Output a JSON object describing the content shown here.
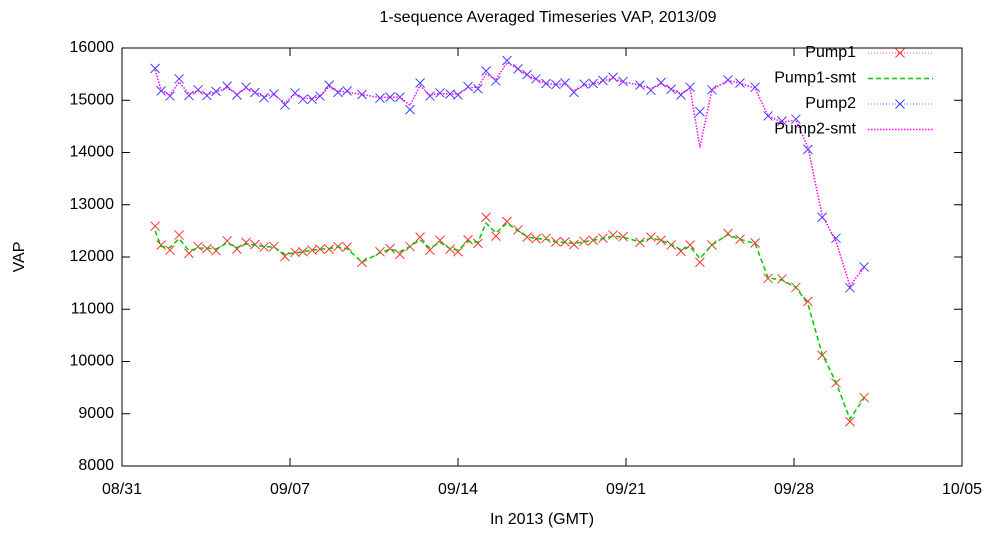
{
  "chart_data": {
    "type": "line",
    "title": "1-sequence Averaged Timeseries VAP, 2013/09",
    "x_label": "In 2013 (GMT)",
    "y_label": "VAP",
    "xlim": [
      0,
      35
    ],
    "xticks": [
      {
        "value": 0,
        "label": "08/31"
      },
      {
        "value": 7,
        "label": "09/07"
      },
      {
        "value": 14,
        "label": "09/14"
      },
      {
        "value": 21,
        "label": "09/21"
      },
      {
        "value": 28,
        "label": "09/28"
      },
      {
        "value": 35,
        "label": "10/05"
      }
    ],
    "ylim": [
      8000,
      16000
    ],
    "yticks": [
      8000,
      9000,
      10000,
      11000,
      12000,
      13000,
      14000,
      15000,
      16000
    ],
    "legend": "top-right",
    "x": [
      1.38,
      1.63,
      2.0,
      2.38,
      2.79,
      3.17,
      3.54,
      3.92,
      4.38,
      4.79,
      5.17,
      5.54,
      5.92,
      6.33,
      6.79,
      7.21,
      7.54,
      7.92,
      8.25,
      8.63,
      9.0,
      9.38,
      10.0,
      10.75,
      11.17,
      11.58,
      12.0,
      12.42,
      12.83,
      13.25,
      13.67,
      14.0,
      14.42,
      14.83,
      15.17,
      15.58,
      16.04,
      16.5,
      16.88,
      17.25,
      17.67,
      18.08,
      18.46,
      18.83,
      19.25,
      19.63,
      20.04,
      20.46,
      20.88,
      21.58,
      22.04,
      22.46,
      22.88,
      23.29,
      23.67,
      24.08,
      24.58,
      25.25,
      25.75,
      26.38,
      26.92,
      27.5,
      28.08,
      28.58,
      29.17,
      29.75,
      30.33,
      30.92
    ],
    "series": [
      {
        "name": "Pump1",
        "color": "#ff3030",
        "mode": "points",
        "values": [
          12590,
          12230,
          12130,
          12420,
          12070,
          12200,
          12160,
          12120,
          12310,
          12150,
          12280,
          12240,
          12190,
          12200,
          12010,
          12090,
          12100,
          12130,
          12150,
          12150,
          12200,
          12190,
          11900,
          12100,
          12160,
          12050,
          12200,
          12380,
          12130,
          12320,
          12150,
          12100,
          12330,
          12260,
          12760,
          12400,
          12680,
          12520,
          12380,
          12350,
          12360,
          12290,
          12290,
          12240,
          12300,
          12320,
          12360,
          12420,
          12390,
          12280,
          12380,
          12320,
          12230,
          12110,
          12230,
          11900,
          12230,
          12450,
          12340,
          12270,
          11590,
          11580,
          11420,
          11150,
          10120,
          9590,
          8850,
          9310
        ]
      },
      {
        "name": "Pump1-smt",
        "color": "#00c800",
        "mode": "dashed",
        "values": [
          12500,
          12200,
          12180,
          12350,
          12120,
          12170,
          12170,
          12150,
          12270,
          12180,
          12250,
          12230,
          12200,
          12190,
          12050,
          12080,
          12100,
          12130,
          12150,
          12160,
          12190,
          12160,
          11900,
          12080,
          12150,
          12100,
          12200,
          12330,
          12170,
          12280,
          12160,
          12130,
          12300,
          12280,
          12650,
          12460,
          12650,
          12500,
          12390,
          12350,
          12340,
          12290,
          12280,
          12260,
          12290,
          12320,
          12350,
          12400,
          12380,
          12290,
          12360,
          12320,
          12240,
          12140,
          12200,
          11970,
          12230,
          12430,
          12340,
          12260,
          11600,
          11560,
          11420,
          11100,
          10150,
          9600,
          8900,
          9300
        ]
      },
      {
        "name": "Pump2",
        "color": "#4040ff",
        "mode": "points",
        "values": [
          15610,
          15180,
          15080,
          15410,
          15090,
          15200,
          15090,
          15170,
          15270,
          15100,
          15250,
          15150,
          15050,
          15120,
          14910,
          15140,
          15020,
          15020,
          15080,
          15290,
          15150,
          15180,
          15110,
          15040,
          15060,
          15060,
          14820,
          15330,
          15080,
          15140,
          15120,
          15100,
          15260,
          15220,
          15560,
          15370,
          15760,
          15600,
          15490,
          15410,
          15320,
          15300,
          15330,
          15150,
          15310,
          15320,
          15380,
          15440,
          15360,
          15290,
          15190,
          15340,
          15210,
          15100,
          15250,
          14780,
          15200,
          15390,
          15330,
          15250,
          14700,
          14600,
          14640,
          14060,
          12760,
          12360,
          11410,
          11810
        ]
      },
      {
        "name": "Pump2-smt",
        "color": "#ff00ff",
        "mode": "dotted",
        "values": [
          15580,
          15200,
          15100,
          15350,
          15120,
          15180,
          15110,
          15160,
          15240,
          15120,
          15230,
          15160,
          15070,
          15110,
          14950,
          15120,
          15040,
          15030,
          15080,
          15260,
          15170,
          15160,
          15110,
          15050,
          15060,
          15060,
          14900,
          15280,
          15100,
          15130,
          15120,
          15120,
          15240,
          15250,
          15500,
          15400,
          15720,
          15600,
          15480,
          15400,
          15320,
          15300,
          15310,
          15180,
          15290,
          15310,
          15370,
          15420,
          15350,
          15290,
          15220,
          15320,
          15220,
          15120,
          15230,
          14100,
          15200,
          15380,
          15330,
          15230,
          14700,
          14580,
          14620,
          14100,
          12800,
          12300,
          11450,
          11800
        ]
      }
    ]
  }
}
